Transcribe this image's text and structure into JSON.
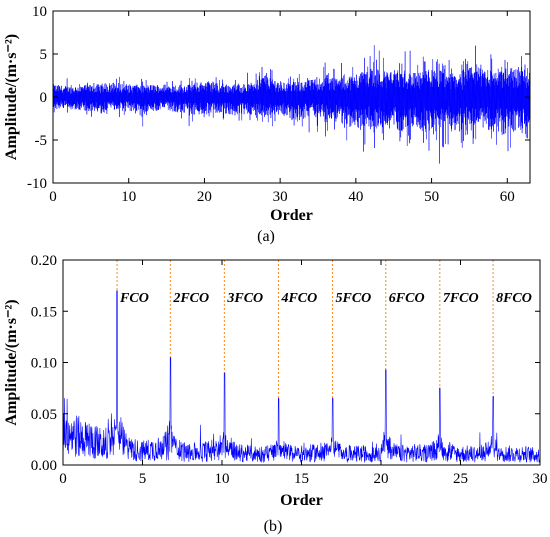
{
  "colors": {
    "signal": "#0000ff",
    "marker": "#ff8c1a",
    "axis": "#000000"
  },
  "chart_data": [
    {
      "type": "line",
      "panel_label": "(a)",
      "xlabel": "Order",
      "ylabel": "Amplitude/(m·s⁻²)",
      "xlim": [
        0,
        63
      ],
      "ylim": [
        -10,
        10
      ],
      "xticks": [
        "0",
        "10",
        "20",
        "30",
        "40",
        "50",
        "60"
      ],
      "yticks": [
        "10",
        "5",
        "0",
        "-5",
        "-10"
      ],
      "series": [
        {
          "x": [
            0,
            2,
            4,
            6,
            8,
            10,
            12,
            14,
            16,
            18,
            20,
            22,
            24,
            26,
            28,
            30,
            32,
            34,
            36,
            38,
            40,
            42,
            44,
            46,
            48,
            50,
            52,
            54,
            56,
            58,
            60,
            62,
            63
          ],
          "envelope_upper": [
            3.0,
            2.5,
            2.8,
            3.0,
            3.5,
            3.0,
            2.8,
            3.0,
            3.0,
            3.0,
            3.8,
            3.0,
            3.0,
            3.2,
            5.8,
            3.5,
            3.5,
            4.0,
            5.0,
            4.5,
            5.5,
            7.5,
            6.0,
            6.5,
            5.5,
            6.5,
            6.0,
            5.5,
            8.0,
            6.5,
            7.0,
            7.0,
            6.0
          ],
          "envelope_lower": [
            -3.0,
            -2.8,
            -3.2,
            -4.0,
            -3.0,
            -3.5,
            -3.5,
            -3.2,
            -3.5,
            -4.0,
            -4.5,
            -3.5,
            -4.5,
            -4.0,
            -5.0,
            -4.0,
            -6.0,
            -4.5,
            -5.5,
            -6.0,
            -8.0,
            -7.0,
            -7.0,
            -8.0,
            -7.0,
            -9.5,
            -7.5,
            -8.0,
            -7.0,
            -8.0,
            -9.0,
            -7.5,
            -6.0
          ]
        }
      ]
    },
    {
      "type": "line",
      "panel_label": "(b)",
      "xlabel": "Order",
      "ylabel": "Amplitude/(m·s⁻²)",
      "xlim": [
        0,
        30
      ],
      "ylim": [
        0,
        0.2
      ],
      "xticks": [
        "0",
        "5",
        "10",
        "15",
        "20",
        "25",
        "30"
      ],
      "yticks": [
        "0.20",
        "0.15",
        "0.10",
        "0.05",
        "0.00"
      ],
      "peaks": [
        {
          "label": "FCO",
          "order": 3.4,
          "value": 0.17
        },
        {
          "label": "2FCO",
          "order": 6.75,
          "value": 0.105
        },
        {
          "label": "3FCO",
          "order": 10.15,
          "value": 0.09
        },
        {
          "label": "4FCO",
          "order": 13.55,
          "value": 0.065
        },
        {
          "label": "5FCO",
          "order": 16.95,
          "value": 0.065
        },
        {
          "label": "6FCO",
          "order": 20.3,
          "value": 0.093
        },
        {
          "label": "7FCO",
          "order": 23.7,
          "value": 0.075
        },
        {
          "label": "8FCO",
          "order": 27.05,
          "value": 0.067
        }
      ],
      "baseline": {
        "x": [
          0,
          0.5,
          1,
          1.5,
          2,
          2.5,
          3,
          4,
          5,
          6,
          8,
          9,
          11,
          12,
          14,
          15,
          16,
          18,
          19,
          21,
          22,
          25,
          26,
          28,
          29,
          30
        ],
        "level": [
          0.05,
          0.035,
          0.03,
          0.028,
          0.025,
          0.022,
          0.02,
          0.018,
          0.015,
          0.018,
          0.013,
          0.015,
          0.013,
          0.012,
          0.012,
          0.012,
          0.013,
          0.012,
          0.012,
          0.012,
          0.013,
          0.012,
          0.012,
          0.012,
          0.012,
          0.01
        ]
      }
    }
  ]
}
